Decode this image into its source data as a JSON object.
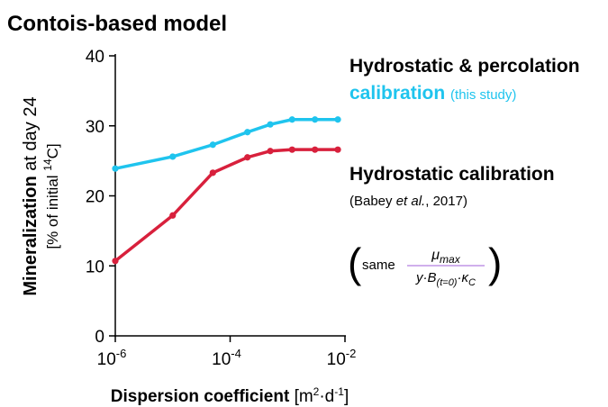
{
  "chart_data": {
    "type": "line",
    "title": "Contois-based model",
    "x_label": "Dispersion coefficient",
    "x_unit": [
      "[m",
      "2",
      "·d",
      "-1",
      "]"
    ],
    "y_label": "Mineralization",
    "y_label_rest": "at day 24",
    "y_unit": [
      "[% of initial ",
      "14",
      "C]"
    ],
    "log_x": true,
    "xlim": [
      1e-06,
      0.01
    ],
    "xticks": [
      {
        "value": 1e-06,
        "label": "10",
        "exponent": "-6"
      },
      {
        "value": 0.0001,
        "label": "10",
        "exponent": "-4"
      },
      {
        "value": 0.01,
        "label": "10",
        "exponent": "-2"
      }
    ],
    "ylim": [
      0,
      40
    ],
    "yticks": [
      0,
      10,
      20,
      30,
      40
    ],
    "x": [
      1e-06,
      1e-05,
      5e-05,
      0.0002,
      0.0005,
      0.0012,
      0.003,
      0.0075
    ],
    "series": [
      {
        "name": "Hydrostatic & percolation",
        "name_line2": "calibration",
        "note": "(this study)",
        "color": "#1fc4ee",
        "values": [
          23.9,
          25.6,
          27.3,
          29.1,
          30.2,
          30.9,
          30.9,
          30.9
        ]
      },
      {
        "name": "Hydrostatic calibration",
        "note_parts": [
          "(Babey ",
          "et al.",
          ", 2017)"
        ],
        "color": "#d8203c",
        "values": [
          10.7,
          17.2,
          23.3,
          25.5,
          26.4,
          26.6,
          26.6,
          26.6
        ]
      }
    ],
    "annotation": {
      "prefix": "same",
      "numerator": "μ",
      "numerator_sub": "max",
      "denominator": "y·B",
      "denominator_sub": "(t=0)",
      "denominator_mid": "·κ",
      "denominator_sub2": "C",
      "color": "#a25fd8"
    }
  }
}
